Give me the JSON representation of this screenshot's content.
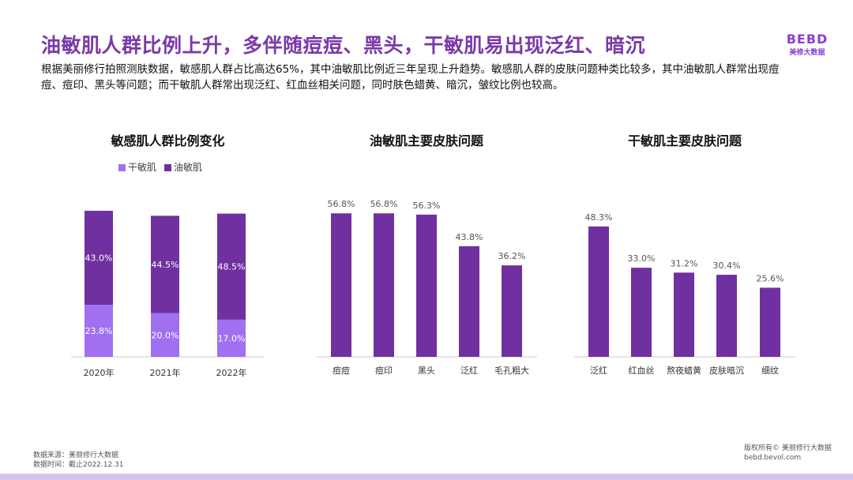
{
  "title": "油敏肌人群比例上升，多伴随痘痘、黑头，干敏肌易出现泛红、暗沉",
  "description": "根据美丽修行拍照测肤数据，敏感肌人群占比高达65%，其中油敏肌比例近三年呈现上升趋势。敏感肌人群的皮肤问题种类比较多，其中油敏肌人群常出现痘痘、痘印、黑头等问题；而干敏肌人群常出现泛红、红血丝相关问题，同时肤色蜡黄、暗沉，皱纹比例也较高。",
  "logo": {
    "mark": "BEBD",
    "text": "美修大数据"
  },
  "colors": {
    "dark": "#7030a0",
    "light": "#a070f0",
    "title": "#7a3aa8"
  },
  "footer": {
    "source": "数据来源：美丽修行大数据",
    "time": "数据时间：截止2022.12.31",
    "copyright": "版权所有© 美丽修行大数据",
    "site": "bebd.bevol.com"
  },
  "chart_data": [
    {
      "type": "bar",
      "stacked": true,
      "title": "敏感肌人群比例变化",
      "categories": [
        "2020年",
        "2021年",
        "2022年"
      ],
      "series": [
        {
          "name": "干敏肌",
          "values": [
            23.8,
            20.0,
            17.0
          ],
          "labels": [
            "23.8%",
            "20.0%",
            "17.0%"
          ]
        },
        {
          "name": "油敏肌",
          "values": [
            43.0,
            44.5,
            48.5
          ],
          "labels": [
            "43.0%",
            "44.5%",
            "48.5%"
          ]
        }
      ],
      "legend": "top"
    },
    {
      "type": "bar",
      "title": "油敏肌主要皮肤问题",
      "categories": [
        "痘痘",
        "痘印",
        "黑头",
        "泛红",
        "毛孔粗大"
      ],
      "values": [
        56.8,
        56.8,
        56.3,
        43.8,
        36.2
      ],
      "labels": [
        "56.8%",
        "56.8%",
        "56.3%",
        "43.8%",
        "36.2%"
      ]
    },
    {
      "type": "bar",
      "title": "干敏肌主要皮肤问题",
      "categories": [
        "泛红",
        "红血丝",
        "熬夜蜡黄",
        "皮肤暗沉",
        "细纹"
      ],
      "values": [
        48.3,
        33.0,
        31.2,
        30.4,
        25.6
      ],
      "labels": [
        "48.3%",
        "33.0%",
        "31.2%",
        "30.4%",
        "25.6%"
      ]
    }
  ]
}
